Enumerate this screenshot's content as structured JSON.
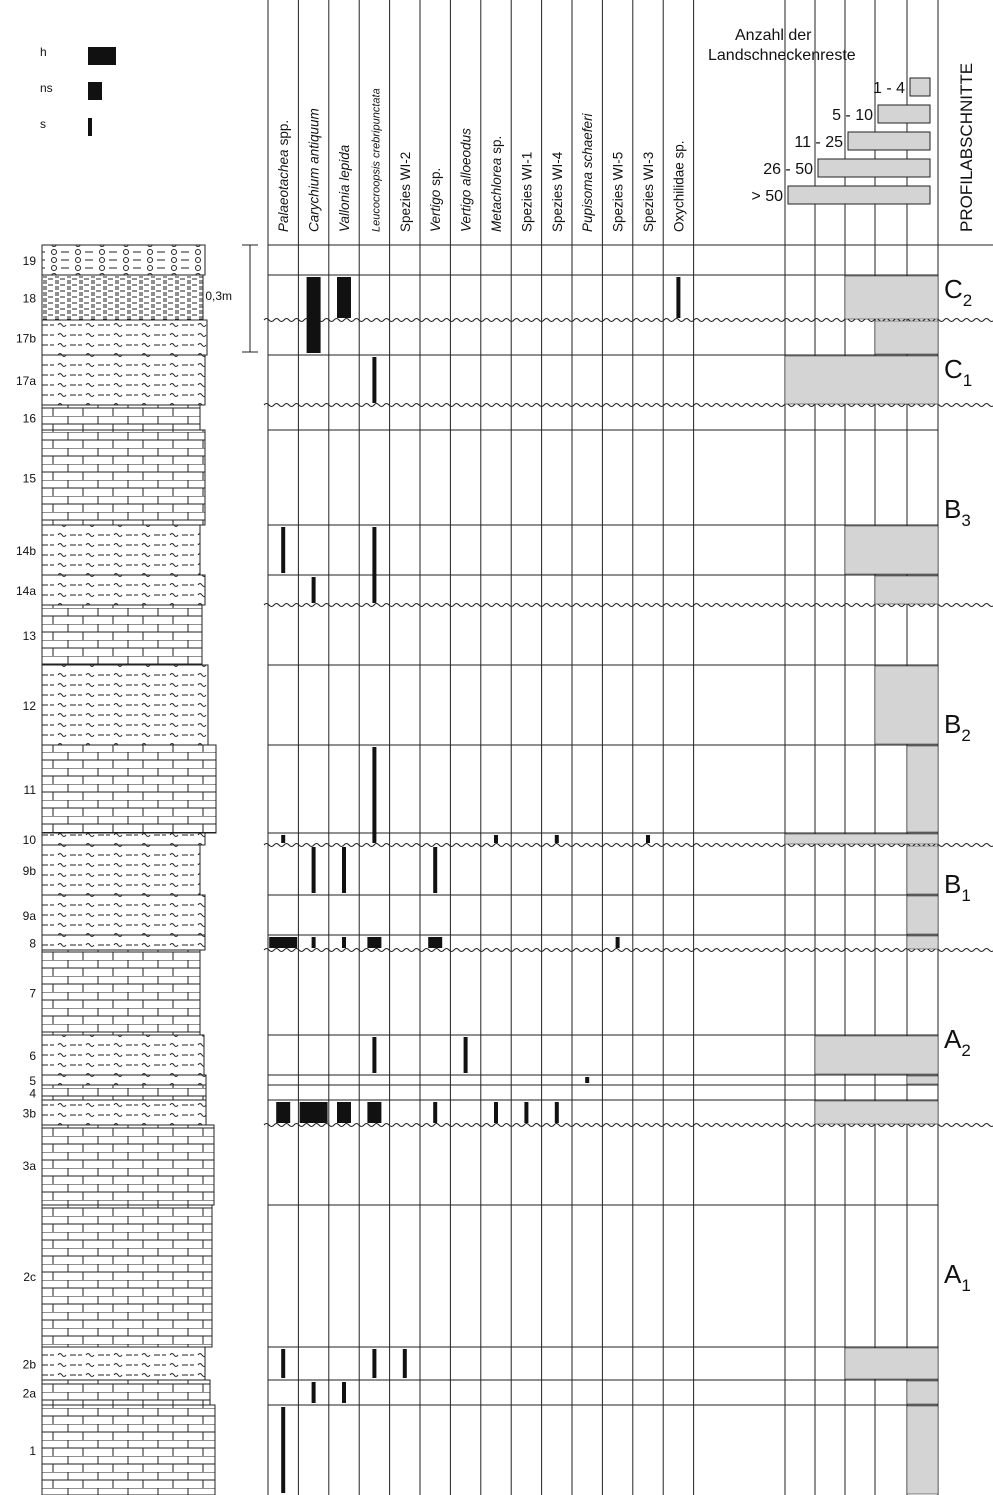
{
  "legend_abundance": [
    "h",
    "ns",
    "s"
  ],
  "scale": "0,3m",
  "layers": [
    "19",
    "18",
    "17b",
    "17a",
    "16",
    "15",
    "14b",
    "14a",
    "13",
    "12",
    "11",
    "10",
    "9b",
    "9a",
    "8",
    "7",
    "6",
    "5",
    "4",
    "3b",
    "3a",
    "2c",
    "2b",
    "2a",
    "1"
  ],
  "species": [
    {
      "italic": "Palaeotachea",
      "plain": "spp."
    },
    {
      "italic": "Carychium antiquum"
    },
    {
      "italic": "Vallonia lepida"
    },
    {
      "italic": "Leucocroopsis crebripunctata"
    },
    {
      "plain": "Spezies WI-2"
    },
    {
      "italic": "Vertigo",
      "plain": "sp."
    },
    {
      "italic": "Vertigo alloeodus"
    },
    {
      "italic": "Metachlorea",
      "plain": "sp."
    },
    {
      "plain": "Spezies WI-1"
    },
    {
      "plain": "Spezies WI-4"
    },
    {
      "italic": "Pupisoma schaeferi"
    },
    {
      "plain": "Spezies WI-5"
    },
    {
      "plain": "Spezies WI-3"
    },
    {
      "plain": "Oxychilidae sp."
    }
  ],
  "count_legend": {
    "title": [
      "Anzahl der",
      "Landschneckenreste"
    ],
    "classes": [
      "1 - 4",
      "5 - 10",
      "11 - 25",
      "26 - 50",
      "> 50"
    ]
  },
  "sections_title": "PROFILABSCHNITTE",
  "sections": [
    {
      "letter": "C",
      "sub": "2"
    },
    {
      "letter": "C",
      "sub": "1"
    },
    {
      "letter": "B",
      "sub": "3"
    },
    {
      "letter": "B",
      "sub": "2"
    },
    {
      "letter": "B",
      "sub": "1"
    },
    {
      "letter": "A",
      "sub": "2"
    },
    {
      "letter": "A",
      "sub": "1"
    }
  ]
}
